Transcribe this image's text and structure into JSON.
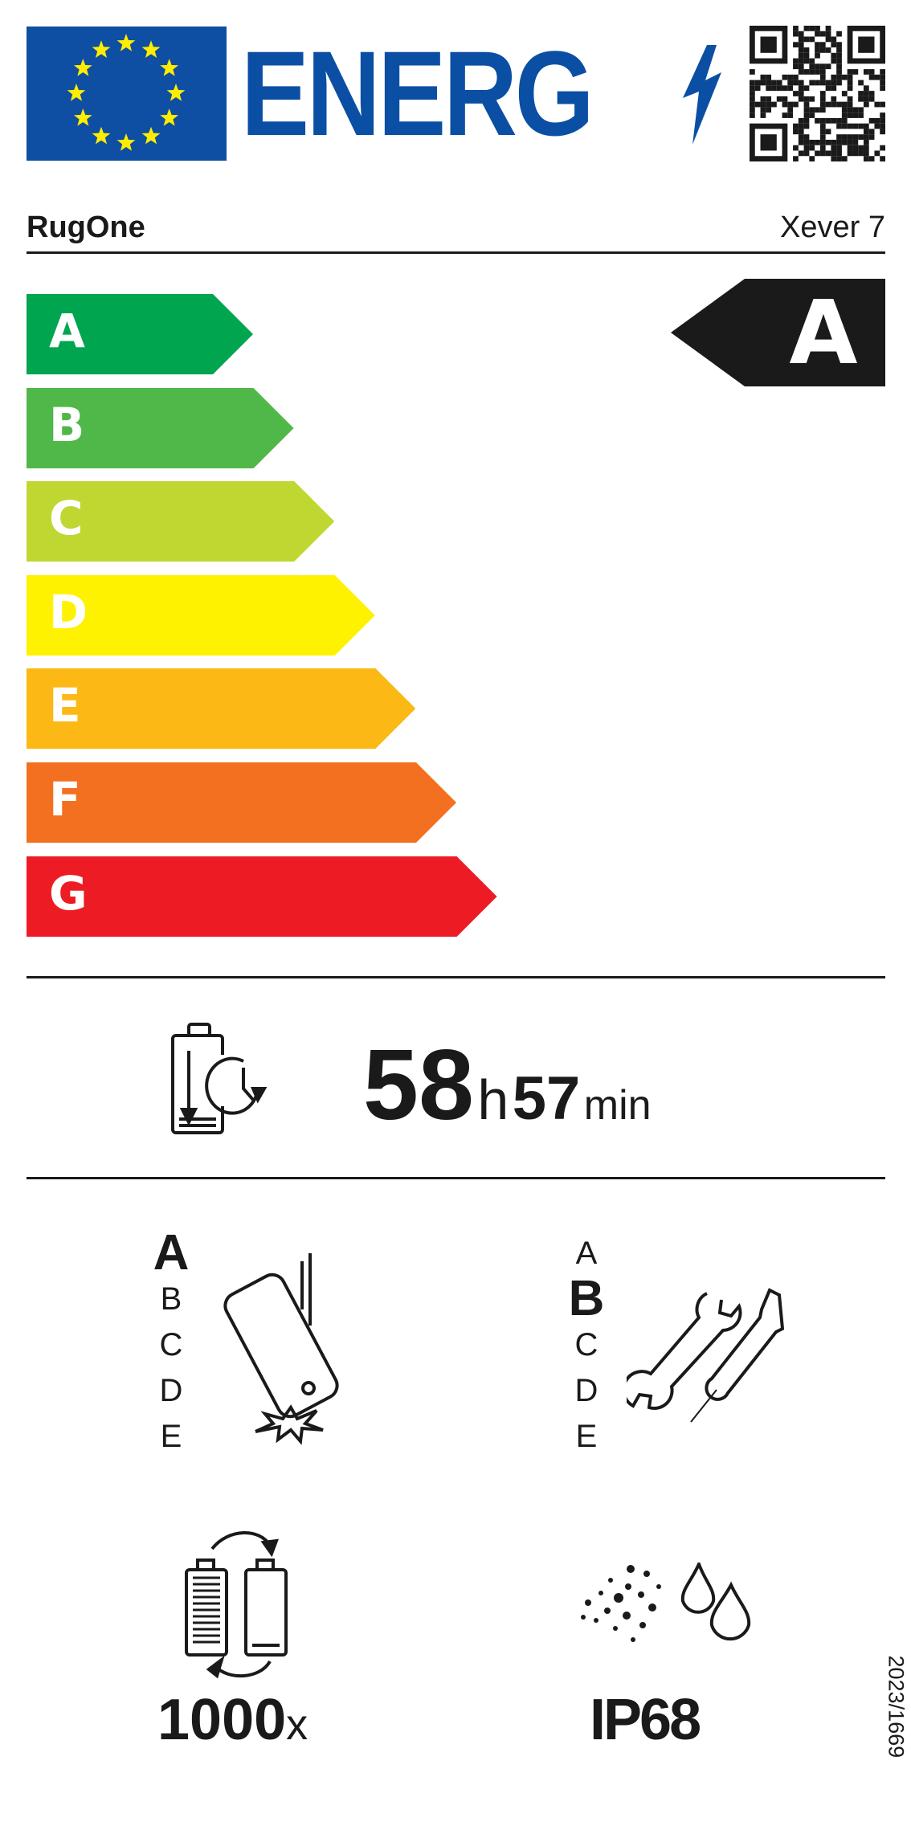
{
  "header": {
    "logo_text": "ENERG",
    "eu_flag_color": "#0e4ea3",
    "star_color": "#ffed00",
    "brand_blue": "#0a4fa3",
    "qr_icon": "qr-code"
  },
  "supplier": "RugOne",
  "model": "Xever 7",
  "energy_scale": [
    {
      "label": "A",
      "color": "#00a54f"
    },
    {
      "label": "B",
      "color": "#50b848"
    },
    {
      "label": "C",
      "color": "#bfd730"
    },
    {
      "label": "D",
      "color": "#fff200"
    },
    {
      "label": "E",
      "color": "#fcb814"
    },
    {
      "label": "F",
      "color": "#f37021"
    },
    {
      "label": "G",
      "color": "#ed1c24"
    }
  ],
  "energy_class": "A",
  "battery_endurance": {
    "hours": "58",
    "h_unit": "h",
    "minutes": "57",
    "min_unit": "min"
  },
  "drop_resistance": {
    "grades": [
      "A",
      "B",
      "C",
      "D",
      "E"
    ],
    "selected": "A"
  },
  "repairability": {
    "grades": [
      "A",
      "B",
      "C",
      "D",
      "E"
    ],
    "selected": "B"
  },
  "battery_cycles": {
    "value": "1000",
    "unit": "x"
  },
  "ingress_protection": {
    "value": "IP68"
  },
  "regulation": "2023/1669"
}
